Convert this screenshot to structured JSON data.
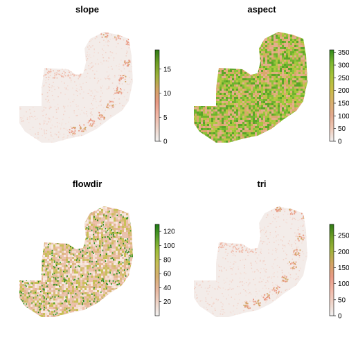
{
  "panels": [
    {
      "title": "slope",
      "colors": [
        "#f2f2f2",
        "#efd4c9",
        "#f2b7a6",
        "#e89a84",
        "#d2a463",
        "#9fb33a",
        "#6f9f25",
        "#2f7a16"
      ],
      "ticks": [
        "0",
        "5",
        "10",
        "15"
      ],
      "tick_values": [
        0,
        5,
        10,
        15
      ],
      "range": [
        0,
        19
      ],
      "pattern": "slope"
    },
    {
      "title": "aspect",
      "colors": [
        "#f2f2f2",
        "#efc8b6",
        "#e3a98d",
        "#d8b06d",
        "#c8bd45",
        "#a8c33a",
        "#7cb82f",
        "#2f8a1a"
      ],
      "ticks": [
        "0",
        "50",
        "100",
        "150",
        "200",
        "250",
        "300",
        "350"
      ],
      "tick_values": [
        0,
        50,
        100,
        150,
        200,
        250,
        300,
        350
      ],
      "range": [
        0,
        360
      ],
      "pattern": "aspect"
    },
    {
      "title": "flowdir",
      "colors": [
        "#f2f2f2",
        "#f0d5c8",
        "#e8b79f",
        "#d7b071",
        "#c7bf55",
        "#9fbe3a",
        "#5aa02a",
        "#1e7a14"
      ],
      "ticks": [
        "20",
        "40",
        "60",
        "80",
        "100",
        "120"
      ],
      "tick_values": [
        20,
        40,
        60,
        80,
        100,
        120
      ],
      "range": [
        0,
        130
      ],
      "pattern": "flowdir"
    },
    {
      "title": "tri",
      "colors": [
        "#f2f2f2",
        "#efd4c9",
        "#f2b7a6",
        "#e89a84",
        "#d2a463",
        "#9fb33a",
        "#6f9f25",
        "#2f7a16"
      ],
      "ticks": [
        "0",
        "50",
        "100",
        "150",
        "200",
        "250"
      ],
      "tick_values": [
        0,
        50,
        100,
        150,
        200,
        250
      ],
      "range": [
        0,
        285
      ],
      "pattern": "tri"
    }
  ]
}
